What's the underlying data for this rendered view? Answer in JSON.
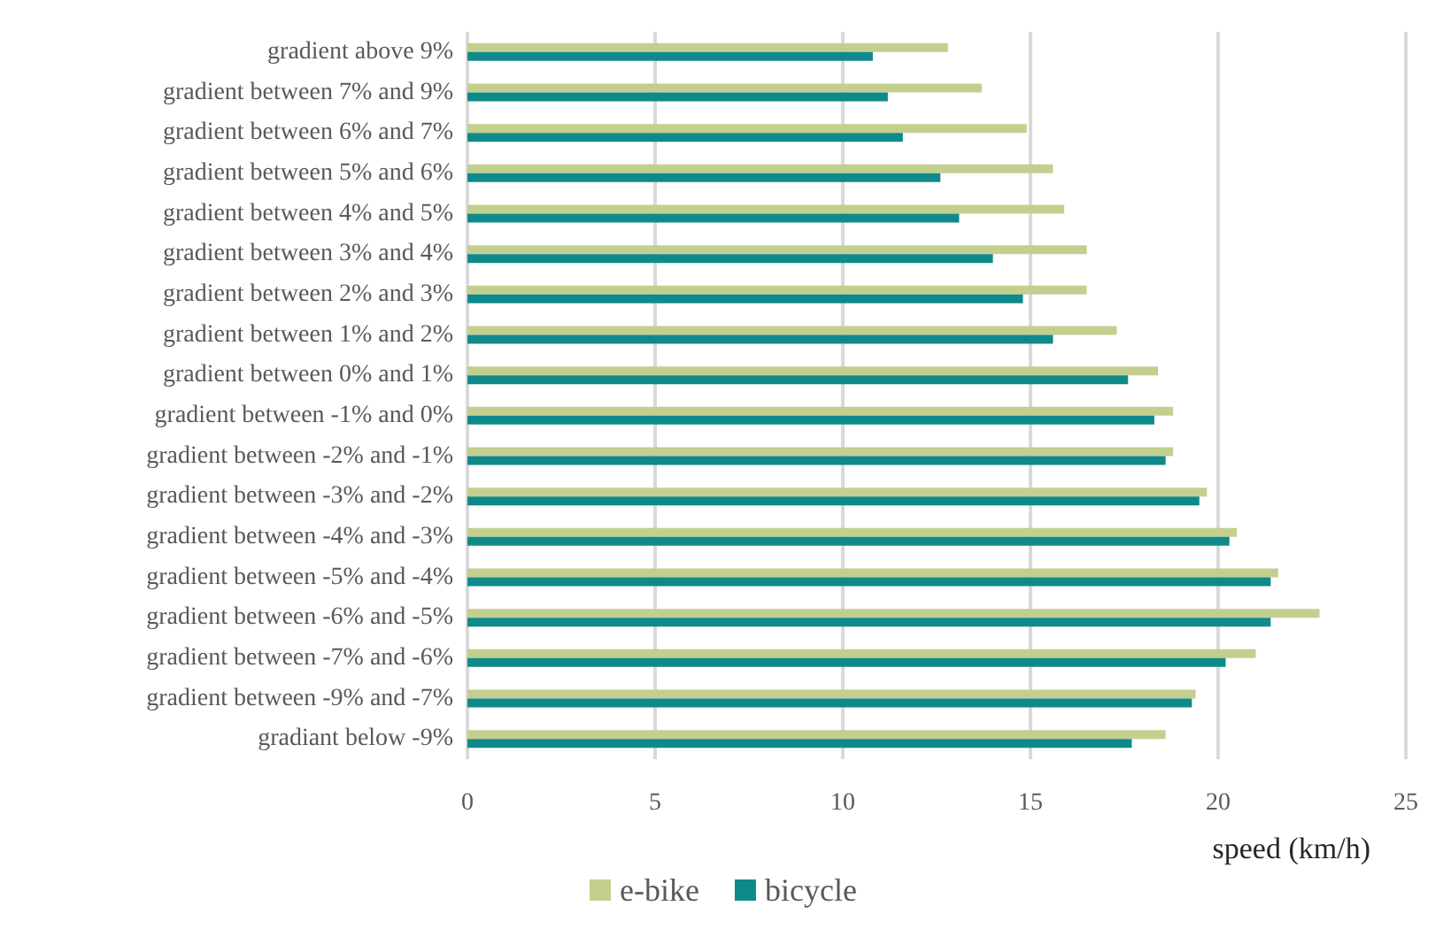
{
  "chart_data": {
    "type": "bar",
    "orientation": "horizontal",
    "xlabel": "speed (km/h)",
    "categories": [
      "gradient above 9%",
      "gradient between 7% and 9%",
      "gradient between 6% and 7%",
      "gradient between 5% and 6%",
      "gradient between 4% and 5%",
      "gradient between 3% and 4%",
      "gradient between 2% and 3%",
      "gradient between 1% and 2%",
      "gradient between 0% and 1%",
      "gradient between -1% and 0%",
      "gradient between -2% and -1%",
      "gradient between -3% and -2%",
      "gradient between -4% and -3%",
      "gradient between -5% and -4%",
      "gradient between -6% and -5%",
      "gradient between -7% and -6%",
      "gradient between -9% and -7%",
      "gradiant below -9%"
    ],
    "series": [
      {
        "name": "e-bike",
        "color": "#c3cf8f",
        "values": [
          12.8,
          13.7,
          14.9,
          15.6,
          15.9,
          16.5,
          16.5,
          17.3,
          18.4,
          18.8,
          18.8,
          19.7,
          20.5,
          21.6,
          22.7,
          21.0,
          19.4,
          18.6
        ]
      },
      {
        "name": "bicycle",
        "color": "#0f8a8a",
        "values": [
          10.8,
          11.2,
          11.6,
          12.6,
          13.1,
          14.0,
          14.8,
          15.6,
          17.6,
          18.3,
          18.6,
          19.5,
          20.3,
          21.4,
          21.4,
          20.2,
          19.3,
          17.7
        ]
      }
    ],
    "xlim": [
      0,
      25
    ],
    "xticks": [
      0,
      5,
      10,
      15,
      20,
      25
    ],
    "grid": "x",
    "legend": "bottom"
  }
}
